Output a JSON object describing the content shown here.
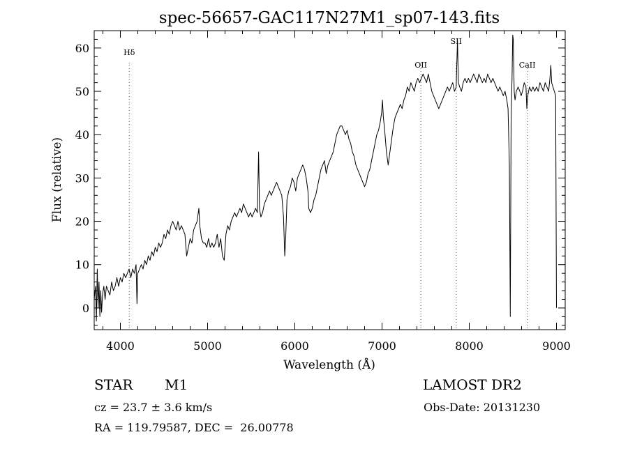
{
  "chart_data": {
    "type": "line",
    "title": "spec-56657-GAC117N27M1_sp07-143.fits",
    "xlabel": "Wavelength (Å)",
    "ylabel": "Flux (relative)",
    "xlim": [
      3700,
      9100
    ],
    "ylim": [
      -5,
      64
    ],
    "xticks": [
      4000,
      5000,
      6000,
      7000,
      8000,
      9000
    ],
    "yticks": [
      0,
      10,
      20,
      30,
      40,
      50,
      60
    ],
    "grid": false,
    "line_color": "#000000",
    "line_markers": [
      {
        "label": "Hδ",
        "x": 4102
      },
      {
        "label": "OII",
        "x": 7445
      },
      {
        "label": "SII",
        "x": 7850
      },
      {
        "label": "CaII",
        "x": 8665
      }
    ],
    "series": [
      {
        "values_xy": [
          [
            3700,
            2
          ],
          [
            3715,
            5
          ],
          [
            3725,
            -3
          ],
          [
            3735,
            9
          ],
          [
            3745,
            0
          ],
          [
            3755,
            6
          ],
          [
            3765,
            -2
          ],
          [
            3775,
            4
          ],
          [
            3785,
            -1
          ],
          [
            3795,
            3
          ],
          [
            3810,
            5
          ],
          [
            3825,
            2
          ],
          [
            3840,
            5
          ],
          [
            3860,
            4
          ],
          [
            3880,
            3
          ],
          [
            3900,
            6
          ],
          [
            3920,
            4
          ],
          [
            3940,
            5
          ],
          [
            3960,
            7
          ],
          [
            3980,
            5
          ],
          [
            4000,
            7
          ],
          [
            4020,
            6
          ],
          [
            4040,
            8
          ],
          [
            4060,
            7
          ],
          [
            4080,
            8
          ],
          [
            4100,
            9
          ],
          [
            4120,
            7
          ],
          [
            4140,
            9
          ],
          [
            4160,
            8
          ],
          [
            4180,
            10
          ],
          [
            4190,
            1
          ],
          [
            4200,
            8
          ],
          [
            4220,
            9
          ],
          [
            4240,
            10
          ],
          [
            4260,
            9
          ],
          [
            4280,
            11
          ],
          [
            4300,
            10
          ],
          [
            4320,
            12
          ],
          [
            4340,
            11
          ],
          [
            4360,
            13
          ],
          [
            4380,
            12
          ],
          [
            4400,
            14
          ],
          [
            4420,
            13
          ],
          [
            4440,
            15
          ],
          [
            4460,
            14
          ],
          [
            4480,
            15
          ],
          [
            4500,
            17
          ],
          [
            4520,
            16
          ],
          [
            4540,
            18
          ],
          [
            4560,
            17
          ],
          [
            4580,
            19
          ],
          [
            4600,
            20
          ],
          [
            4620,
            19
          ],
          [
            4640,
            18
          ],
          [
            4660,
            20
          ],
          [
            4680,
            18
          ],
          [
            4700,
            19
          ],
          [
            4720,
            18
          ],
          [
            4740,
            17
          ],
          [
            4760,
            12
          ],
          [
            4780,
            14
          ],
          [
            4800,
            16
          ],
          [
            4820,
            15
          ],
          [
            4840,
            18
          ],
          [
            4860,
            19
          ],
          [
            4880,
            20
          ],
          [
            4900,
            23
          ],
          [
            4910,
            19
          ],
          [
            4930,
            16
          ],
          [
            4950,
            15
          ],
          [
            4970,
            15
          ],
          [
            4990,
            14
          ],
          [
            5010,
            16
          ],
          [
            5030,
            14
          ],
          [
            5050,
            15
          ],
          [
            5070,
            14
          ],
          [
            5090,
            15
          ],
          [
            5110,
            17
          ],
          [
            5130,
            14
          ],
          [
            5150,
            16
          ],
          [
            5170,
            12
          ],
          [
            5190,
            11
          ],
          [
            5210,
            17
          ],
          [
            5230,
            19
          ],
          [
            5250,
            18
          ],
          [
            5270,
            20
          ],
          [
            5290,
            21
          ],
          [
            5310,
            22
          ],
          [
            5330,
            21
          ],
          [
            5350,
            22
          ],
          [
            5370,
            23
          ],
          [
            5390,
            22
          ],
          [
            5410,
            24
          ],
          [
            5430,
            23
          ],
          [
            5450,
            22
          ],
          [
            5470,
            21
          ],
          [
            5490,
            22
          ],
          [
            5510,
            21
          ],
          [
            5530,
            22
          ],
          [
            5550,
            23
          ],
          [
            5570,
            22
          ],
          [
            5585,
            36
          ],
          [
            5595,
            23
          ],
          [
            5610,
            21
          ],
          [
            5630,
            22
          ],
          [
            5650,
            24
          ],
          [
            5670,
            25
          ],
          [
            5690,
            26
          ],
          [
            5710,
            27
          ],
          [
            5730,
            26
          ],
          [
            5750,
            27
          ],
          [
            5770,
            28
          ],
          [
            5790,
            29
          ],
          [
            5810,
            28
          ],
          [
            5830,
            27
          ],
          [
            5850,
            26
          ],
          [
            5870,
            21
          ],
          [
            5885,
            12
          ],
          [
            5895,
            16
          ],
          [
            5910,
            25
          ],
          [
            5930,
            27
          ],
          [
            5950,
            28
          ],
          [
            5970,
            30
          ],
          [
            5990,
            29
          ],
          [
            6010,
            27
          ],
          [
            6030,
            30
          ],
          [
            6050,
            31
          ],
          [
            6070,
            32
          ],
          [
            6090,
            33
          ],
          [
            6110,
            32
          ],
          [
            6130,
            30
          ],
          [
            6150,
            27
          ],
          [
            6160,
            23
          ],
          [
            6180,
            22
          ],
          [
            6200,
            23
          ],
          [
            6220,
            25
          ],
          [
            6240,
            26
          ],
          [
            6260,
            28
          ],
          [
            6280,
            30
          ],
          [
            6300,
            32
          ],
          [
            6320,
            33
          ],
          [
            6340,
            34
          ],
          [
            6360,
            31
          ],
          [
            6380,
            33
          ],
          [
            6400,
            34
          ],
          [
            6420,
            35
          ],
          [
            6440,
            36
          ],
          [
            6460,
            38
          ],
          [
            6480,
            40
          ],
          [
            6500,
            41
          ],
          [
            6520,
            42
          ],
          [
            6540,
            42
          ],
          [
            6560,
            41
          ],
          [
            6580,
            40
          ],
          [
            6600,
            41
          ],
          [
            6620,
            39
          ],
          [
            6640,
            38
          ],
          [
            6660,
            36
          ],
          [
            6680,
            35
          ],
          [
            6700,
            33
          ],
          [
            6720,
            32
          ],
          [
            6740,
            31
          ],
          [
            6760,
            30
          ],
          [
            6780,
            29
          ],
          [
            6800,
            28
          ],
          [
            6820,
            29
          ],
          [
            6840,
            31
          ],
          [
            6860,
            32
          ],
          [
            6880,
            34
          ],
          [
            6900,
            36
          ],
          [
            6920,
            38
          ],
          [
            6940,
            40
          ],
          [
            6960,
            41
          ],
          [
            6980,
            43
          ],
          [
            6995,
            45
          ],
          [
            7005,
            48
          ],
          [
            7015,
            44
          ],
          [
            7030,
            41
          ],
          [
            7050,
            36
          ],
          [
            7070,
            33
          ],
          [
            7090,
            36
          ],
          [
            7110,
            39
          ],
          [
            7130,
            42
          ],
          [
            7150,
            44
          ],
          [
            7170,
            45
          ],
          [
            7190,
            46
          ],
          [
            7210,
            47
          ],
          [
            7230,
            46
          ],
          [
            7250,
            48
          ],
          [
            7270,
            49
          ],
          [
            7290,
            51
          ],
          [
            7310,
            50
          ],
          [
            7330,
            52
          ],
          [
            7350,
            51
          ],
          [
            7370,
            50
          ],
          [
            7390,
            52
          ],
          [
            7410,
            53
          ],
          [
            7430,
            52
          ],
          [
            7450,
            53
          ],
          [
            7470,
            54
          ],
          [
            7490,
            53
          ],
          [
            7510,
            52
          ],
          [
            7530,
            54
          ],
          [
            7550,
            52
          ],
          [
            7570,
            50
          ],
          [
            7590,
            49
          ],
          [
            7610,
            48
          ],
          [
            7630,
            47
          ],
          [
            7650,
            46
          ],
          [
            7670,
            47
          ],
          [
            7690,
            48
          ],
          [
            7710,
            49
          ],
          [
            7730,
            50
          ],
          [
            7750,
            51
          ],
          [
            7770,
            50
          ],
          [
            7790,
            51
          ],
          [
            7810,
            52
          ],
          [
            7830,
            50
          ],
          [
            7850,
            51
          ],
          [
            7865,
            62
          ],
          [
            7875,
            52
          ],
          [
            7890,
            51
          ],
          [
            7910,
            50
          ],
          [
            7930,
            52
          ],
          [
            7950,
            53
          ],
          [
            7970,
            52
          ],
          [
            7990,
            53
          ],
          [
            8010,
            52
          ],
          [
            8030,
            53
          ],
          [
            8050,
            54
          ],
          [
            8070,
            53
          ],
          [
            8090,
            52
          ],
          [
            8110,
            54
          ],
          [
            8130,
            53
          ],
          [
            8150,
            52
          ],
          [
            8170,
            53
          ],
          [
            8190,
            52
          ],
          [
            8210,
            54
          ],
          [
            8230,
            53
          ],
          [
            8250,
            52
          ],
          [
            8270,
            53
          ],
          [
            8290,
            52
          ],
          [
            8310,
            51
          ],
          [
            8330,
            50
          ],
          [
            8350,
            51
          ],
          [
            8370,
            50
          ],
          [
            8390,
            49
          ],
          [
            8410,
            50
          ],
          [
            8430,
            48
          ],
          [
            8445,
            46
          ],
          [
            8460,
            33
          ],
          [
            8470,
            -2
          ],
          [
            8480,
            44
          ],
          [
            8490,
            53
          ],
          [
            8498,
            63
          ],
          [
            8505,
            62
          ],
          [
            8515,
            50
          ],
          [
            8525,
            48
          ],
          [
            8540,
            50
          ],
          [
            8560,
            51
          ],
          [
            8580,
            50
          ],
          [
            8595,
            49
          ],
          [
            8610,
            50
          ],
          [
            8630,
            52
          ],
          [
            8650,
            51
          ],
          [
            8660,
            46
          ],
          [
            8670,
            49
          ],
          [
            8690,
            51
          ],
          [
            8710,
            50
          ],
          [
            8730,
            51
          ],
          [
            8750,
            50
          ],
          [
            8770,
            51
          ],
          [
            8790,
            50
          ],
          [
            8810,
            52
          ],
          [
            8830,
            51
          ],
          [
            8850,
            50
          ],
          [
            8870,
            52
          ],
          [
            8890,
            51
          ],
          [
            8910,
            50
          ],
          [
            8925,
            53
          ],
          [
            8935,
            56
          ],
          [
            8945,
            52
          ],
          [
            8960,
            51
          ],
          [
            8975,
            50
          ],
          [
            8990,
            49
          ],
          [
            9000,
            0
          ]
        ]
      }
    ]
  },
  "footer": {
    "object_class": "STAR",
    "subclass": "M1",
    "survey": "LAMOST DR2",
    "cz": "cz = 23.7 ± 3.6 km/s",
    "obs_date": "Obs-Date: 20131230",
    "radec": "RA = 119.79587, DEC =  26.00778"
  }
}
